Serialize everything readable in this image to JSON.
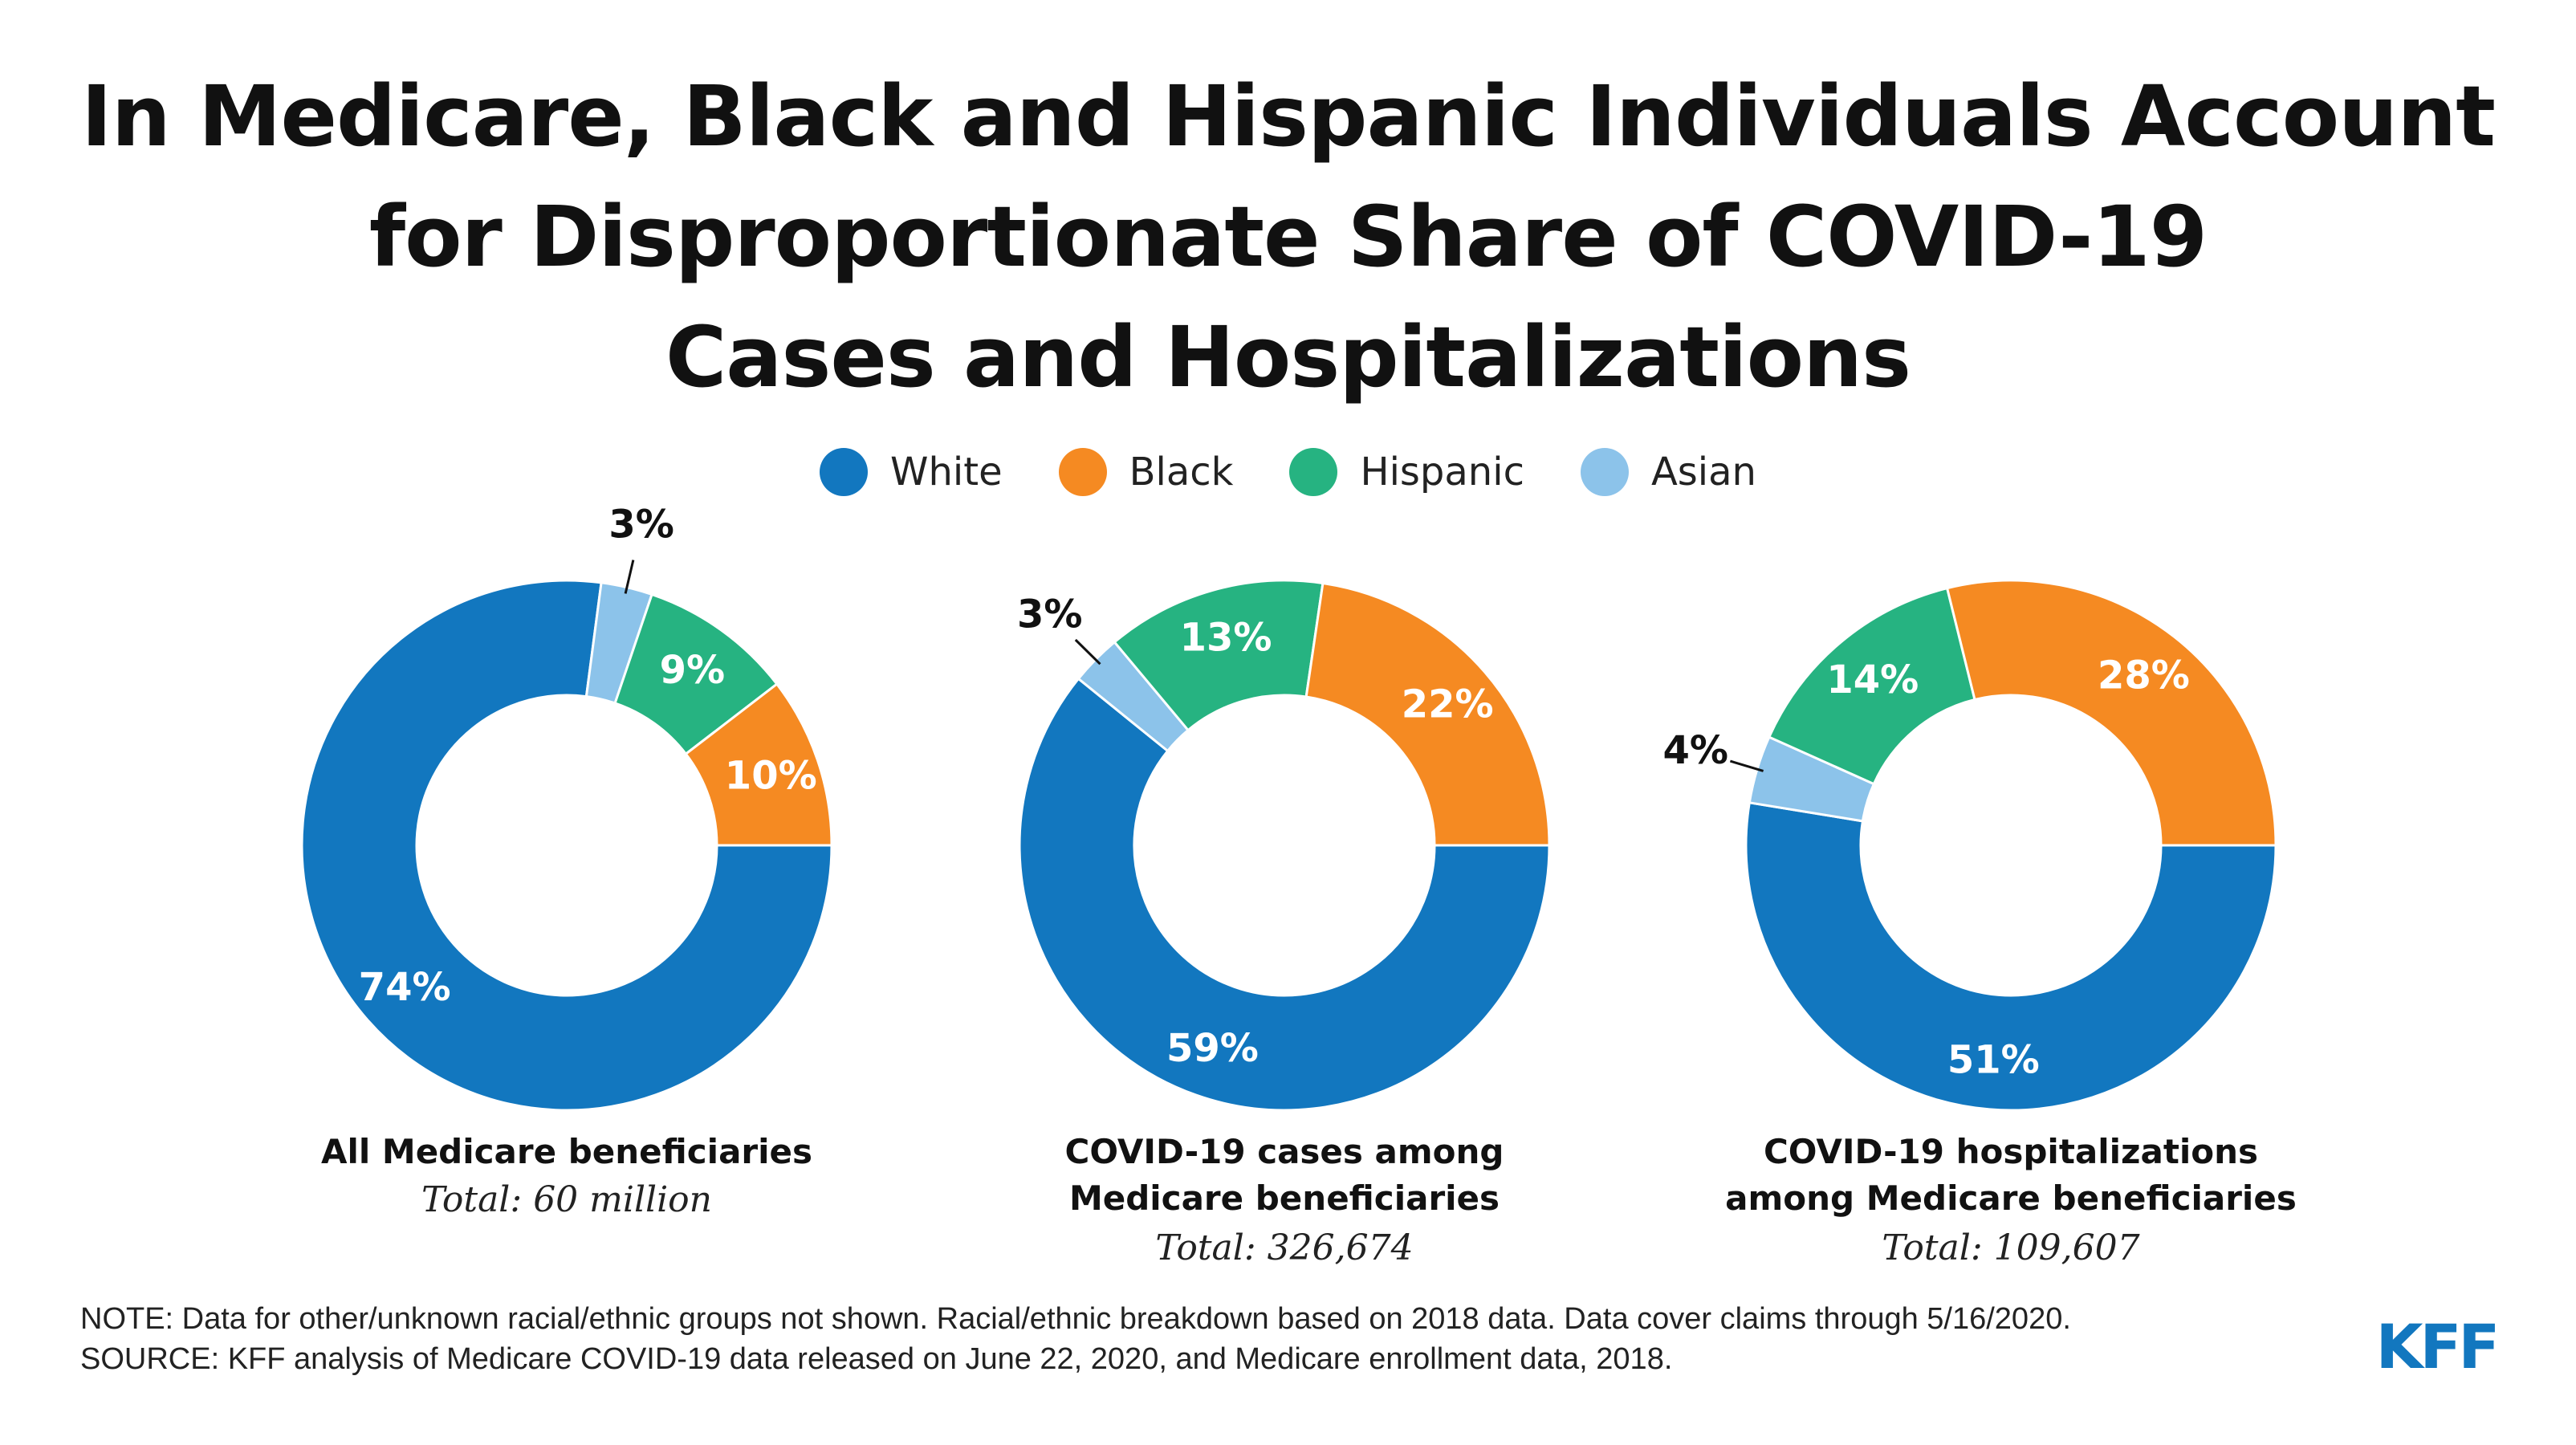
{
  "title_lines": [
    "In Medicare, Black and Hispanic Individuals Account",
    "for Disproportionate Share of COVID-19",
    "Cases and Hospitalizations"
  ],
  "colors": {
    "White": "#1277bf",
    "Black": "#f58a22",
    "Hispanic": "#26b381",
    "Asian": "#8cc3ea"
  },
  "legend": [
    "White",
    "Black",
    "Hispanic",
    "Asian"
  ],
  "chart_data": [
    {
      "type": "pie",
      "title": "All Medicare beneficiaries",
      "total_label": "Total: 60 million",
      "categories": [
        "White",
        "Black",
        "Hispanic",
        "Asian"
      ],
      "values": [
        74,
        10,
        9,
        3
      ],
      "labels": [
        "74%",
        "10%",
        "9%",
        "3%"
      ]
    },
    {
      "type": "pie",
      "title": "COVID-19 cases among Medicare beneficiaries",
      "total_label": "Total: 326,674",
      "categories": [
        "White",
        "Black",
        "Hispanic",
        "Asian"
      ],
      "values": [
        59,
        22,
        13,
        3
      ],
      "labels": [
        "59%",
        "22%",
        "13%",
        "3%"
      ]
    },
    {
      "type": "pie",
      "title": "COVID-19 hospitalizations among Medicare beneficiaries",
      "total_label": "Total: 109,607",
      "categories": [
        "White",
        "Black",
        "Hispanic",
        "Asian"
      ],
      "values": [
        51,
        28,
        14,
        4
      ],
      "labels": [
        "51%",
        "28%",
        "14%",
        "4%"
      ]
    }
  ],
  "captions": [
    {
      "lines": [
        "All Medicare beneficiaries"
      ],
      "total": "Total: 60 million"
    },
    {
      "lines": [
        "COVID-19 cases among",
        "Medicare beneficiaries"
      ],
      "total": "Total: 326,674"
    },
    {
      "lines": [
        "COVID-19 hospitalizations",
        "among Medicare beneficiaries"
      ],
      "total": "Total: 109,607"
    }
  ],
  "footer": {
    "note": "NOTE: Data for other/unknown racial/ethnic groups not shown. Racial/ethnic breakdown based on 2018 data. Data cover claims through 5/16/2020.",
    "source": "SOURCE: KFF analysis of Medicare COVID-19 data released on June 22, 2020, and Medicare enrollment data, 2018."
  },
  "logo_text": "KFF"
}
